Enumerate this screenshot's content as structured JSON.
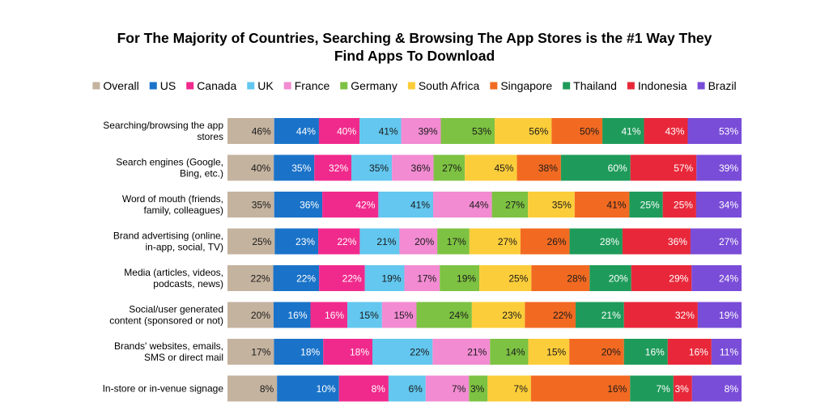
{
  "chart_data": {
    "type": "bar",
    "orientation": "horizontal",
    "stacked": true,
    "title_lines": [
      "For The Majority of Countries, Searching & Browsing The App Stores is the #1 Way They",
      "Find Apps To Download"
    ],
    "legend_position": "top",
    "grid": false,
    "categories": [
      [
        "Searching/browsing the app",
        "stores"
      ],
      [
        "Search engines (Google,",
        "Bing, etc.)"
      ],
      [
        "Word of mouth (friends,",
        "family, colleagues)"
      ],
      [
        "Brand advertising (online,",
        "in-app, social, TV)"
      ],
      [
        "Media (articles, videos,",
        "podcasts, news)"
      ],
      [
        "Social/user generated",
        "content (sponsored or not)"
      ],
      [
        "Brands' websites, emails,",
        "SMS or direct mail"
      ],
      [
        "In-store or in-venue signage"
      ]
    ],
    "series": [
      {
        "name": "Overall",
        "color": "#c4b39f",
        "values": [
          46,
          40,
          35,
          25,
          22,
          20,
          17,
          8
        ]
      },
      {
        "name": "US",
        "color": "#1a73c9",
        "values": [
          44,
          35,
          36,
          23,
          22,
          16,
          18,
          10
        ]
      },
      {
        "name": "Canada",
        "color": "#f02a8c",
        "values": [
          40,
          32,
          42,
          22,
          22,
          16,
          18,
          8
        ]
      },
      {
        "name": "UK",
        "color": "#63c7ef",
        "values": [
          41,
          35,
          41,
          21,
          19,
          15,
          22,
          6
        ]
      },
      {
        "name": "France",
        "color": "#f28bd2",
        "values": [
          39,
          36,
          44,
          20,
          17,
          15,
          21,
          7
        ]
      },
      {
        "name": "Germany",
        "color": "#7dc242",
        "values": [
          53,
          27,
          27,
          17,
          19,
          24,
          14,
          3
        ]
      },
      {
        "name": "South Africa",
        "color": "#fccd3a",
        "values": [
          56,
          45,
          35,
          27,
          25,
          23,
          15,
          7
        ]
      },
      {
        "name": "Singapore",
        "color": "#f26a22",
        "values": [
          50,
          38,
          41,
          26,
          28,
          22,
          20,
          16
        ]
      },
      {
        "name": "Thailand",
        "color": "#1e9b5a",
        "values": [
          41,
          60,
          25,
          28,
          20,
          21,
          16,
          7
        ]
      },
      {
        "name": "Indonesia",
        "color": "#e8283a",
        "values": [
          43,
          57,
          25,
          36,
          29,
          32,
          16,
          3
        ]
      },
      {
        "name": "Brazil",
        "color": "#7a4dd8",
        "values": [
          53,
          39,
          34,
          27,
          24,
          19,
          11,
          8
        ]
      }
    ],
    "label_suffix": "%"
  }
}
